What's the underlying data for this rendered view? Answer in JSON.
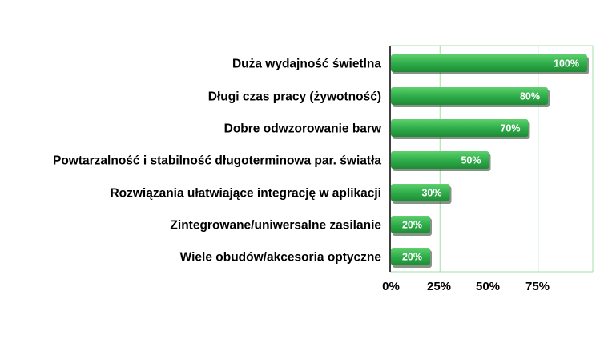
{
  "chart_data": {
    "type": "bar",
    "orientation": "horizontal",
    "categories": [
      "Duża wydajność świetlna",
      "Długi czas pracy (żywotność)",
      "Dobre odwzorowanie barw",
      "Powtarzalność i stabilność długoterminowa par. światła",
      "Rozwiązania ułatwiające integrację w aplikacji",
      "Zintegrowane/uniwersalne zasilanie",
      "Wiele obudów/akcesoria optyczne"
    ],
    "values": [
      100,
      80,
      70,
      50,
      30,
      20,
      20
    ],
    "value_labels": [
      "100%",
      "80%",
      "70%",
      "50%",
      "30%",
      "20%",
      "20%"
    ],
    "x_ticks": [
      0,
      25,
      50,
      75
    ],
    "x_tick_labels": [
      "0%",
      "25%",
      "50%",
      "75%"
    ],
    "xlim": [
      0,
      100
    ],
    "grid": true,
    "colors": {
      "bar": "#2fae4a",
      "bar_light": "#5fd06e",
      "bar_dark": "#1f8a35",
      "bar_shadow": "#1f3b22",
      "grid": "#9fe0a5",
      "axis": "#000000"
    }
  }
}
